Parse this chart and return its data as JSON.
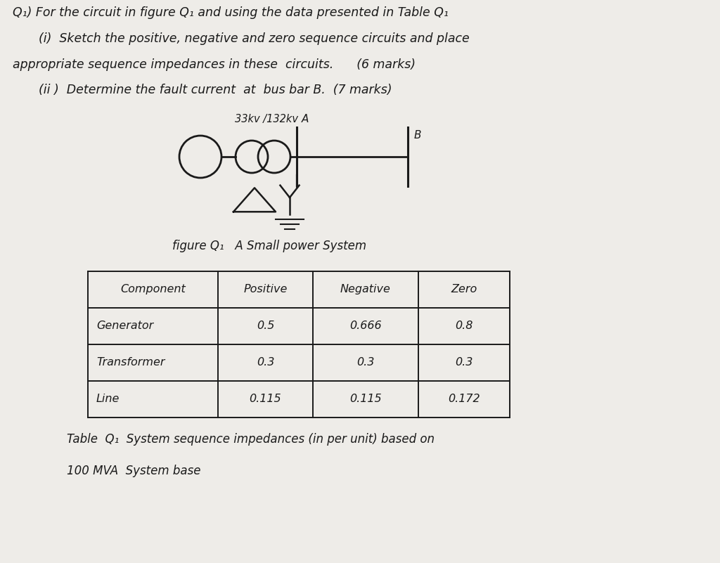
{
  "bg_color": "#eeece8",
  "text_color": "#1a1a1a",
  "title_line": "Q₁) For the circuit in figure Q₁ and using the data presented in Table Q₁",
  "line1": "(i)  Sketch the positive, negative and zero sequence circuits and place",
  "line2": "appropriate sequence impedances in these  circuits.      (6 marks)",
  "line3": "(ii )  Determine the fault current  at  bus bar B.  (7 marks)",
  "transformer_label": "33kv /132kv",
  "node_A": "A",
  "node_B": "B",
  "fig_caption": "figure Q₁   A Small power System",
  "table_headers": [
    "Component",
    "Positive",
    "Negative",
    "Zero"
  ],
  "table_rows": [
    [
      "Generator",
      "0.5",
      "0.666",
      "0.8"
    ],
    [
      "Transformer",
      "0.3",
      "0.3",
      "0.3"
    ],
    [
      "Line",
      "0.115",
      "0.115",
      "0.172"
    ]
  ],
  "table_caption1": "Table  Q₁  System sequence impedances (in per unit) based on",
  "table_caption2": "100 MVA  System base",
  "fs_main": 12.5,
  "fs_circuit": 11,
  "fs_table": 11.5,
  "fs_caption": 12
}
